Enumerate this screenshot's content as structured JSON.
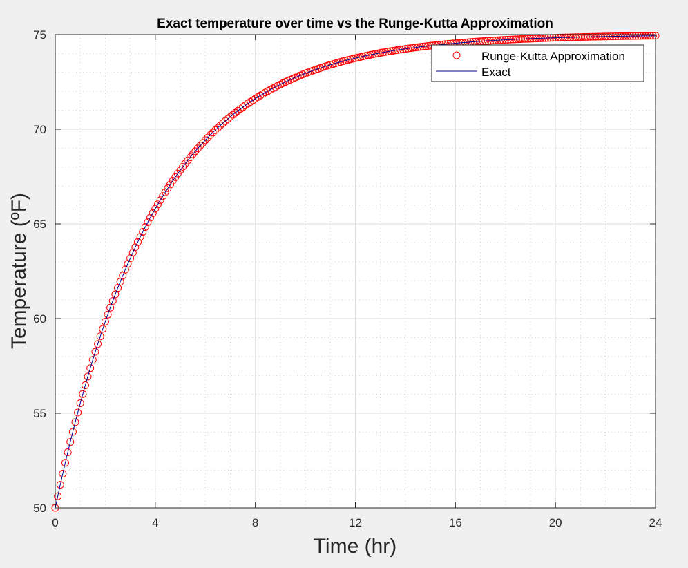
{
  "chart_data": {
    "type": "line",
    "title": "Exact temperature over time vs the Runge-Kutta Approximation",
    "xlabel": "Time (hr)",
    "ylabel": "Temperature (ºF)",
    "xlim": [
      0,
      24
    ],
    "ylim": [
      50,
      75
    ],
    "xticks": [
      "0",
      "4",
      "8",
      "12",
      "16",
      "20",
      "24"
    ],
    "yticks": [
      "50",
      "55",
      "60",
      "65",
      "70",
      "75"
    ],
    "grid": true,
    "minor_grid": true,
    "legend_position": "top-right",
    "series": [
      {
        "name": "Runge-Kutta Approximation",
        "style": "markers",
        "marker": "circle",
        "color": "#ff0000",
        "x_start": 0,
        "x_end": 24,
        "x_step": 0.1,
        "model": {
          "T_ambient": 75,
          "T_initial": 50,
          "rate_per_hr": 0.25
        }
      },
      {
        "name": "Exact",
        "style": "line",
        "color": "#00008b",
        "x_start": 0,
        "x_end": 24,
        "x_step": 0.1,
        "model": {
          "T_ambient": 75,
          "T_initial": 50,
          "rate_per_hr": 0.25
        }
      }
    ]
  }
}
